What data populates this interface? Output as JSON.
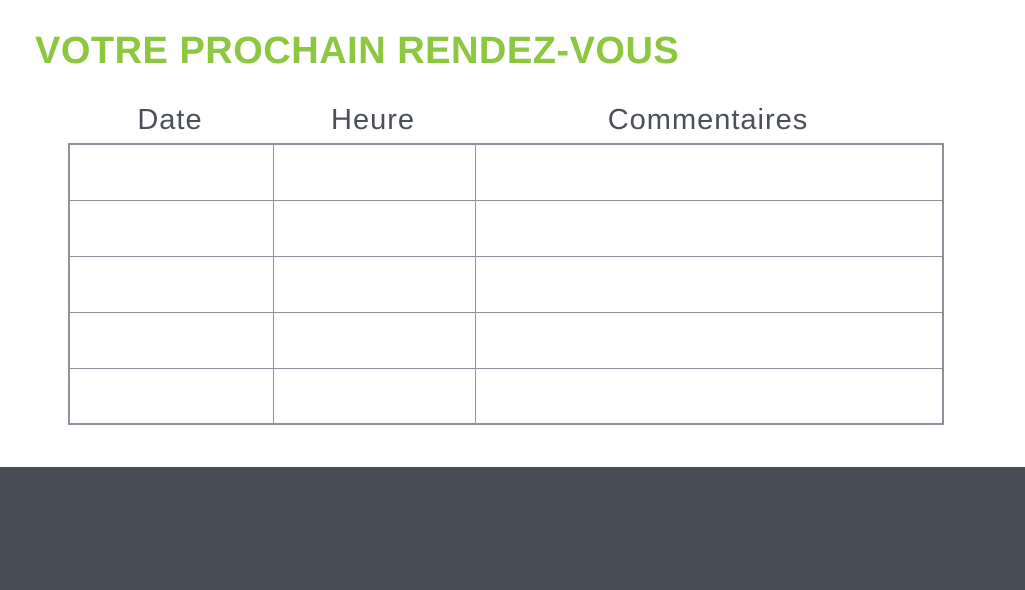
{
  "page": {
    "title": "VOTRE PROCHAIN RENDEZ-VOUS"
  },
  "colors": {
    "title_green": "#8dc63f",
    "header_text": "#4a4f58",
    "table_border": "#8b909a",
    "footer_bg": "#474c55",
    "page_bg": "#ffffff"
  },
  "table": {
    "columns": [
      "Date",
      "Heure",
      "Commentaires"
    ],
    "rows": [
      [
        "",
        "",
        ""
      ],
      [
        "",
        "",
        ""
      ],
      [
        "",
        "",
        ""
      ],
      [
        "",
        "",
        ""
      ],
      [
        "",
        "",
        ""
      ]
    ]
  }
}
